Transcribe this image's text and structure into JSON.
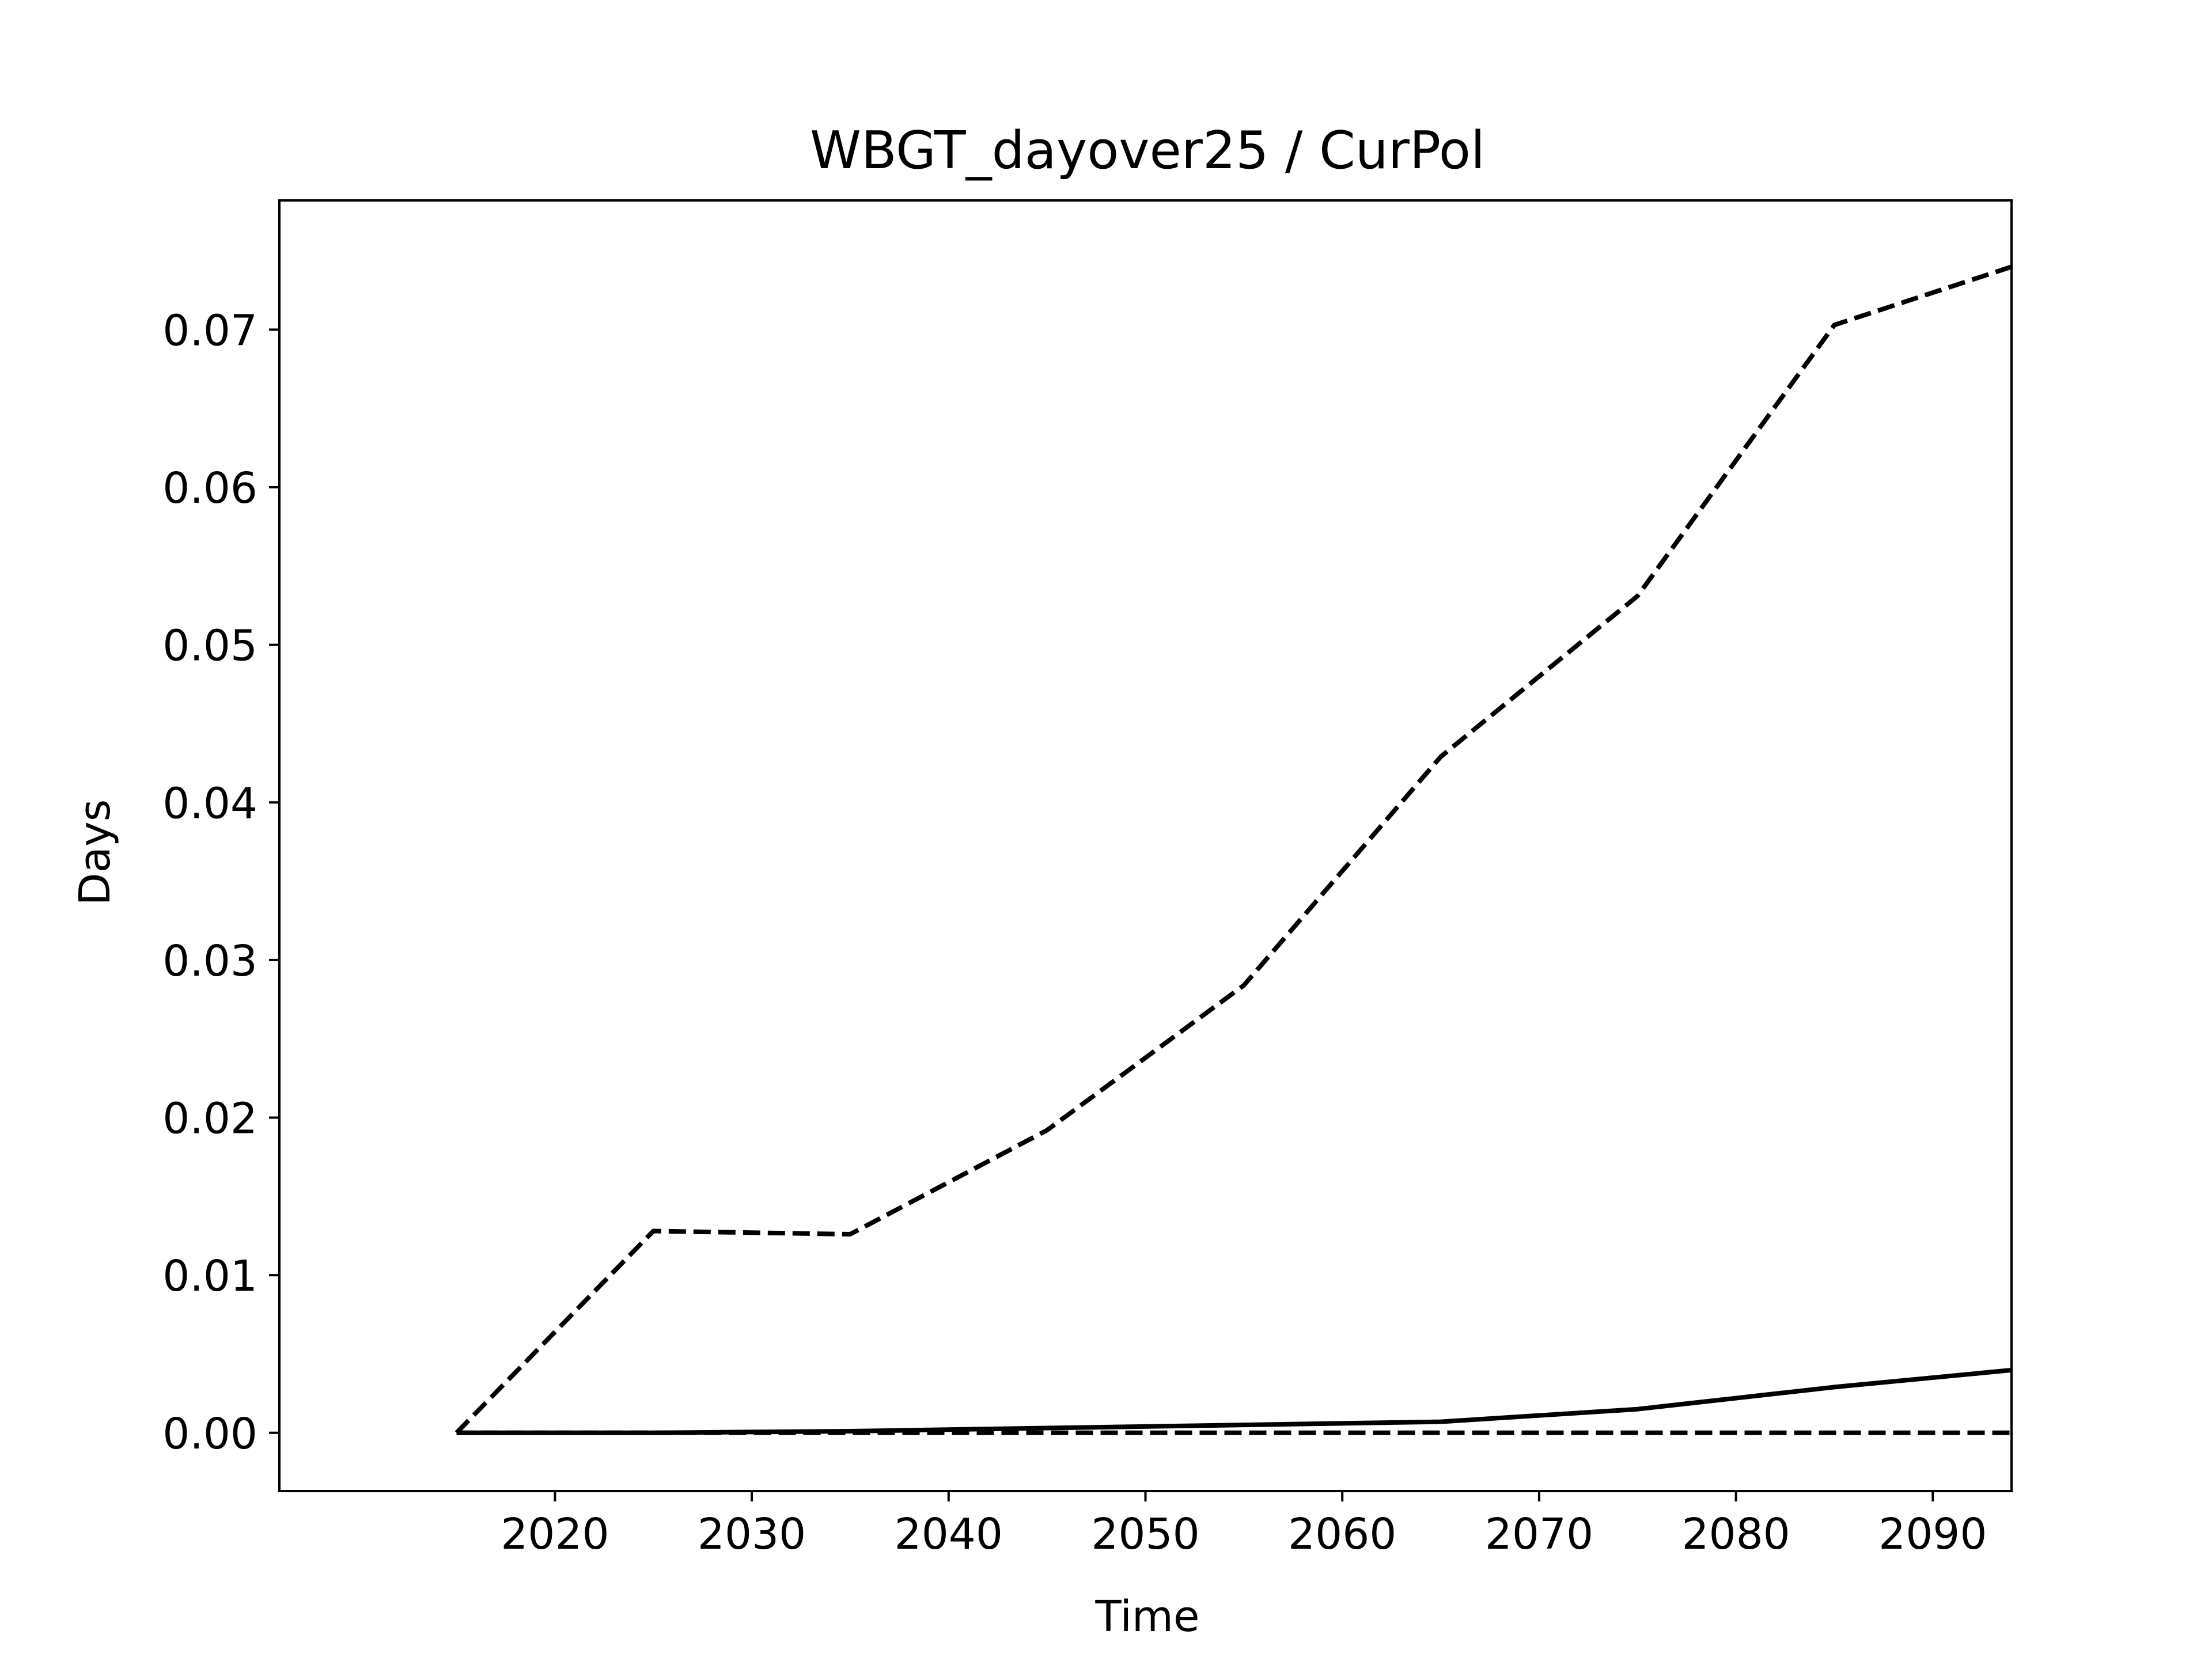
{
  "chart_data": {
    "type": "line",
    "title": "WBGT_dayover25 / CurPol",
    "xlabel": "Time",
    "ylabel": "Days",
    "x": [
      2015,
      2025,
      2035,
      2045,
      2055,
      2065,
      2075,
      2085,
      2095
    ],
    "xlim": [
      2006,
      2094
    ],
    "ylim": [
      -0.0037,
      0.0782
    ],
    "xticks": [
      2020,
      2030,
      2040,
      2050,
      2060,
      2070,
      2080,
      2090
    ],
    "yticks": [
      "0.00",
      "0.01",
      "0.02",
      "0.03",
      "0.04",
      "0.05",
      "0.06",
      "0.07"
    ],
    "grid": false,
    "legend": "none",
    "series": [
      {
        "style": "dashed",
        "color": "#000000",
        "values": [
          0.0,
          0.0128,
          0.0126,
          0.0192,
          0.0284,
          0.0429,
          0.0531,
          0.0703,
          0.0744
        ]
      },
      {
        "style": "solid",
        "color": "#000000",
        "values": [
          0.0,
          0.0,
          0.0001,
          0.0003,
          0.0005,
          0.0007,
          0.0015,
          0.0029,
          0.0041
        ]
      },
      {
        "style": "dashed",
        "color": "#000000",
        "values": [
          0.0,
          0.0,
          0.0,
          0.0,
          0.0,
          0.0,
          0.0,
          0.0,
          0.0
        ]
      }
    ]
  }
}
